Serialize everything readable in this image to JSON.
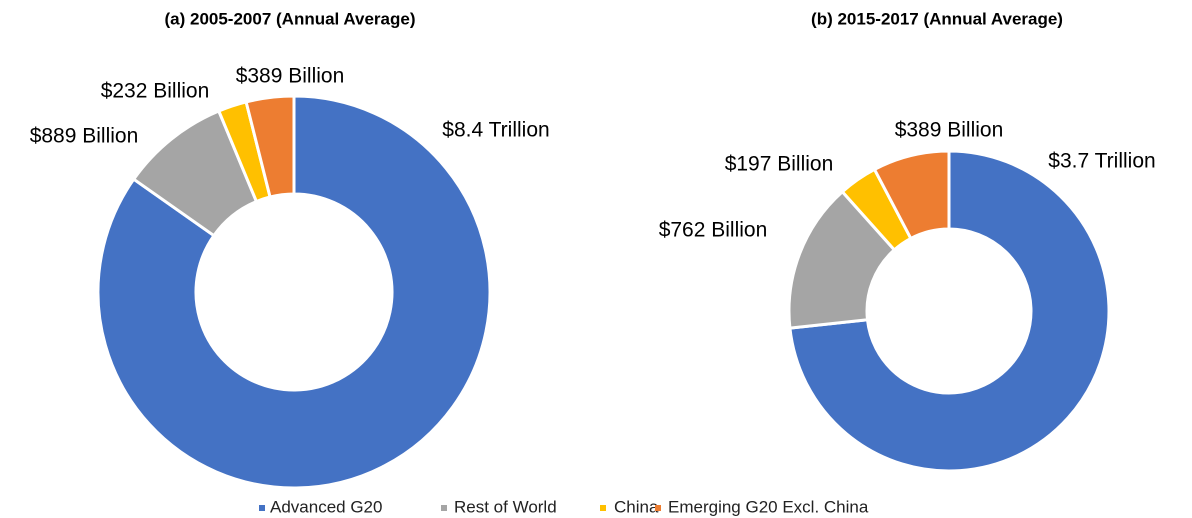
{
  "legend": [
    {
      "name": "Advanced G20",
      "color": "#4472c4"
    },
    {
      "name": "Rest of World",
      "color": "#a5a5a5"
    },
    {
      "name": "China",
      "color": "#ffc000"
    },
    {
      "name": "Emerging G20 Excl. China",
      "color": "#ed7d31"
    }
  ],
  "chart_data": [
    {
      "type": "donut",
      "title": "(a)   2005-2007 (Annual Average)",
      "values": [
        8400,
        889,
        232,
        389
      ],
      "value_labels": [
        "$8.4 Trillion",
        "$889 Billion",
        "$232 Billion",
        "$389 Billion"
      ]
    },
    {
      "type": "donut",
      "title": "(b)   2015-2017 (Annual Average)",
      "values": [
        3700,
        762,
        197,
        389
      ],
      "value_labels": [
        "$3.7 Trillion",
        "$762 Billion",
        "$197 Billion",
        "$389 Billion"
      ]
    }
  ]
}
